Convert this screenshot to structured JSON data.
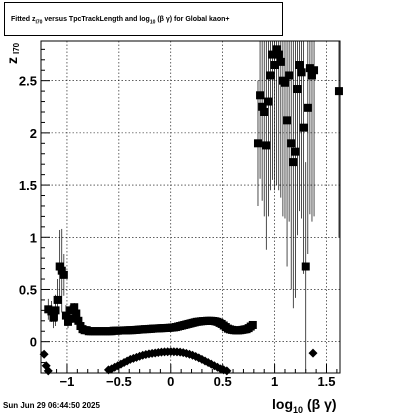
{
  "header": {
    "title_prefix": "Fitted  z",
    "title_sub1": "I70",
    "title_mid": "  versus TpcTrackLength and log",
    "title_sub2": "10",
    "title_suffix": " (β  γ) for Global kaon+"
  },
  "footer": {
    "timestamp": "Sun Jun 29 06:44:50 2025"
  },
  "chart_data": {
    "type": "scatter",
    "title": "Fitted z_I70 versus TpcTrackLength and log10(β γ) for Global kaon+",
    "xlabel_main": "log",
    "xlabel_sub": "10",
    "xlabel_tail": "(β γ)",
    "ylabel_main": "z",
    "ylabel_sub": "I70",
    "xlim": [
      -1.25,
      1.63
    ],
    "ylim": [
      -0.3,
      2.88
    ],
    "grid": true,
    "x_ticks": [
      {
        "value": -1,
        "label": "−1"
      },
      {
        "value": -0.5,
        "label": "−0.5"
      },
      {
        "value": 0,
        "label": "0"
      },
      {
        "value": 0.5,
        "label": "0.5"
      },
      {
        "value": 1,
        "label": "1"
      },
      {
        "value": 1.5,
        "label": "1.5"
      }
    ],
    "y_ticks": [
      {
        "value": 0,
        "label": "0"
      },
      {
        "value": 0.5,
        "label": "0.5"
      },
      {
        "value": 1,
        "label": "1"
      },
      {
        "value": 1.5,
        "label": "1.5"
      },
      {
        "value": 2,
        "label": "2"
      },
      {
        "value": 2.5,
        "label": "2.5"
      }
    ],
    "series": [
      {
        "marker": "square",
        "points": [
          [
            -1.18,
            0.31,
            0.1
          ],
          [
            -1.15,
            0.29,
            0.1
          ],
          [
            -1.13,
            0.23,
            0.1
          ],
          [
            -1.11,
            0.3,
            0.15
          ],
          [
            -1.09,
            0.4,
            0.2
          ],
          [
            -1.07,
            0.72,
            0.35
          ],
          [
            -1.05,
            0.68,
            0.4
          ],
          [
            -1.03,
            0.64,
            0.2
          ],
          [
            -1.01,
            0.25,
            0.1
          ],
          [
            -0.99,
            0.19,
            0.06
          ],
          [
            -0.97,
            0.3,
            0.05
          ],
          [
            -0.95,
            0.22,
            0.04
          ],
          [
            -0.93,
            0.33,
            0.04
          ],
          [
            -0.91,
            0.27,
            0.03
          ],
          [
            -0.89,
            0.2,
            0.02
          ],
          [
            -0.87,
            0.15,
            0.02
          ],
          [
            -0.85,
            0.12,
            0.01
          ],
          [
            -0.83,
            0.11,
            0.01
          ],
          [
            -0.81,
            0.11,
            0.01
          ],
          [
            -0.79,
            0.1,
            0.01
          ],
          [
            -0.77,
            0.1,
            0.01
          ],
          [
            -0.75,
            0.1,
            0.01
          ],
          [
            -0.73,
            0.1,
            0.01
          ],
          [
            -0.71,
            0.1,
            0.01
          ],
          [
            -0.69,
            0.1,
            0.01
          ],
          [
            -0.67,
            0.1,
            0.01
          ],
          [
            -0.65,
            0.1,
            0.01
          ],
          [
            -0.63,
            0.1,
            0.01
          ],
          [
            -0.61,
            0.1,
            0.01
          ],
          [
            -0.59,
            0.1,
            0.01
          ],
          [
            -0.57,
            0.1,
            0.01
          ],
          [
            -0.55,
            0.105,
            0.01
          ],
          [
            -0.53,
            0.105,
            0.01
          ],
          [
            -0.51,
            0.105,
            0.01
          ],
          [
            -0.49,
            0.107,
            0.01
          ],
          [
            -0.47,
            0.107,
            0.01
          ],
          [
            -0.45,
            0.108,
            0.01
          ],
          [
            -0.43,
            0.108,
            0.01
          ],
          [
            -0.41,
            0.109,
            0.01
          ],
          [
            -0.39,
            0.11,
            0.01
          ],
          [
            -0.37,
            0.11,
            0.01
          ],
          [
            -0.35,
            0.112,
            0.01
          ],
          [
            -0.33,
            0.113,
            0.01
          ],
          [
            -0.31,
            0.115,
            0.01
          ],
          [
            -0.29,
            0.117,
            0.01
          ],
          [
            -0.27,
            0.118,
            0.01
          ],
          [
            -0.25,
            0.12,
            0.01
          ],
          [
            -0.23,
            0.12,
            0.01
          ],
          [
            -0.21,
            0.122,
            0.01
          ],
          [
            -0.19,
            0.123,
            0.01
          ],
          [
            -0.17,
            0.125,
            0.01
          ],
          [
            -0.15,
            0.126,
            0.01
          ],
          [
            -0.13,
            0.127,
            0.01
          ],
          [
            -0.11,
            0.128,
            0.01
          ],
          [
            -0.09,
            0.129,
            0.01
          ],
          [
            -0.07,
            0.13,
            0.01
          ],
          [
            -0.05,
            0.131,
            0.01
          ],
          [
            -0.03,
            0.132,
            0.01
          ],
          [
            -0.01,
            0.133,
            0.01
          ],
          [
            0.01,
            0.135,
            0.01
          ],
          [
            0.03,
            0.137,
            0.01
          ],
          [
            0.05,
            0.14,
            0.01
          ],
          [
            0.07,
            0.145,
            0.01
          ],
          [
            0.09,
            0.15,
            0.01
          ],
          [
            0.11,
            0.155,
            0.01
          ],
          [
            0.13,
            0.16,
            0.01
          ],
          [
            0.15,
            0.165,
            0.01
          ],
          [
            0.17,
            0.17,
            0.01
          ],
          [
            0.19,
            0.175,
            0.01
          ],
          [
            0.21,
            0.18,
            0.01
          ],
          [
            0.23,
            0.185,
            0.01
          ],
          [
            0.25,
            0.19,
            0.01
          ],
          [
            0.27,
            0.192,
            0.01
          ],
          [
            0.29,
            0.195,
            0.01
          ],
          [
            0.31,
            0.197,
            0.01
          ],
          [
            0.33,
            0.198,
            0.01
          ],
          [
            0.35,
            0.2,
            0.01
          ],
          [
            0.37,
            0.2,
            0.01
          ],
          [
            0.39,
            0.2,
            0.01
          ],
          [
            0.41,
            0.198,
            0.01
          ],
          [
            0.43,
            0.195,
            0.01
          ],
          [
            0.45,
            0.19,
            0.01
          ],
          [
            0.47,
            0.18,
            0.01
          ],
          [
            0.49,
            0.17,
            0.01
          ],
          [
            0.51,
            0.155,
            0.01
          ],
          [
            0.53,
            0.14,
            0.01
          ],
          [
            0.55,
            0.125,
            0.01
          ],
          [
            0.57,
            0.118,
            0.01
          ],
          [
            0.59,
            0.113,
            0.01
          ],
          [
            0.61,
            0.11,
            0.01
          ],
          [
            0.63,
            0.108,
            0.01
          ],
          [
            0.65,
            0.108,
            0.01
          ],
          [
            0.67,
            0.11,
            0.01
          ],
          [
            0.69,
            0.113,
            0.01
          ],
          [
            0.71,
            0.117,
            0.01
          ],
          [
            0.73,
            0.12,
            0.01
          ],
          [
            0.75,
            0.13,
            0.02
          ],
          [
            0.77,
            0.145,
            0.02
          ],
          [
            0.79,
            0.16,
            0.03
          ],
          [
            0.84,
            1.9,
            0.6
          ],
          [
            0.86,
            2.36,
            0.8
          ],
          [
            0.88,
            2.25,
            0.9
          ],
          [
            0.9,
            2.2,
            1.0
          ],
          [
            0.92,
            1.88,
            1.0
          ],
          [
            0.94,
            2.3,
            1.1
          ],
          [
            0.96,
            2.55,
            1.1
          ],
          [
            0.98,
            2.75,
            1.2
          ],
          [
            1.0,
            2.65,
            1.2
          ],
          [
            1.02,
            2.8,
            1.3
          ],
          [
            1.04,
            2.75,
            1.3
          ],
          [
            1.06,
            2.68,
            1.3
          ],
          [
            1.08,
            2.5,
            1.3
          ],
          [
            1.1,
            2.48,
            1.3
          ],
          [
            1.12,
            2.12,
            1.4
          ],
          [
            1.14,
            2.55,
            1.4
          ],
          [
            1.16,
            1.9,
            1.4
          ],
          [
            1.18,
            1.72,
            1.4
          ],
          [
            1.2,
            1.82,
            1.4
          ],
          [
            1.22,
            2.42,
            1.4
          ],
          [
            1.24,
            2.65,
            1.4
          ],
          [
            1.26,
            2.58,
            1.4
          ],
          [
            1.28,
            2.05,
            1.4
          ],
          [
            1.3,
            0.72,
            1.0
          ],
          [
            1.32,
            2.24,
            1.4
          ],
          [
            1.34,
            2.62,
            1.4
          ],
          [
            1.36,
            2.55,
            1.4
          ],
          [
            1.38,
            2.6,
            1.4
          ],
          [
            1.62,
            2.4,
            1.4
          ]
        ]
      },
      {
        "marker": "diamond",
        "points": [
          [
            -1.22,
            -0.12,
            0.0
          ],
          [
            -1.2,
            -0.23,
            0.0
          ],
          [
            -1.18,
            -0.28,
            0.0
          ],
          [
            -0.6,
            -0.27,
            0.0
          ],
          [
            -0.57,
            -0.26,
            0.0
          ],
          [
            -0.54,
            -0.245,
            0.0
          ],
          [
            -0.51,
            -0.23,
            0.0
          ],
          [
            -0.48,
            -0.215,
            0.0
          ],
          [
            -0.45,
            -0.2,
            0.0
          ],
          [
            -0.42,
            -0.185,
            0.0
          ],
          [
            -0.39,
            -0.17,
            0.0
          ],
          [
            -0.36,
            -0.16,
            0.0
          ],
          [
            -0.33,
            -0.15,
            0.0
          ],
          [
            -0.3,
            -0.14,
            0.0
          ],
          [
            -0.27,
            -0.13,
            0.0
          ],
          [
            -0.24,
            -0.123,
            0.0
          ],
          [
            -0.21,
            -0.117,
            0.0
          ],
          [
            -0.18,
            -0.112,
            0.0
          ],
          [
            -0.15,
            -0.108,
            0.0
          ],
          [
            -0.12,
            -0.104,
            0.0
          ],
          [
            -0.09,
            -0.1,
            0.0
          ],
          [
            -0.06,
            -0.098,
            0.0
          ],
          [
            -0.03,
            -0.096,
            0.0
          ],
          [
            0.0,
            -0.095,
            0.0
          ],
          [
            0.03,
            -0.096,
            0.0
          ],
          [
            0.06,
            -0.098,
            0.0
          ],
          [
            0.09,
            -0.1,
            0.0
          ],
          [
            0.12,
            -0.105,
            0.0
          ],
          [
            0.15,
            -0.112,
            0.0
          ],
          [
            0.18,
            -0.12,
            0.0
          ],
          [
            0.21,
            -0.13,
            0.0
          ],
          [
            0.24,
            -0.142,
            0.0
          ],
          [
            0.27,
            -0.155,
            0.0
          ],
          [
            0.3,
            -0.17,
            0.0
          ],
          [
            0.33,
            -0.185,
            0.0
          ],
          [
            0.36,
            -0.2,
            0.0
          ],
          [
            0.39,
            -0.215,
            0.0
          ],
          [
            0.42,
            -0.23,
            0.0
          ],
          [
            0.45,
            -0.245,
            0.0
          ],
          [
            0.48,
            -0.26,
            0.0
          ],
          [
            0.51,
            -0.27,
            0.0
          ],
          [
            0.54,
            -0.28,
            0.0
          ],
          [
            1.37,
            -0.11,
            0.0
          ]
        ]
      }
    ]
  }
}
